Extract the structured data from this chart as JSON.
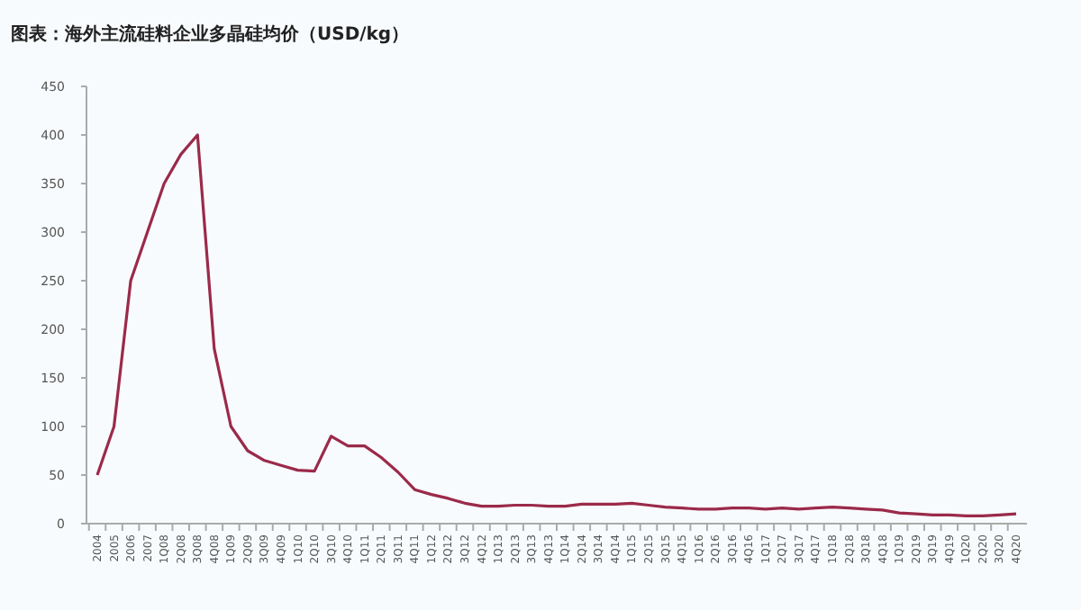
{
  "chart_data": {
    "type": "line",
    "title": "图表：海外主流硅料企业多晶硅均价（USD/kg）",
    "categories": [
      "2004",
      "2005",
      "2006",
      "2007",
      "1Q08",
      "2Q08",
      "3Q08",
      "4Q08",
      "1Q09",
      "2Q09",
      "3Q09",
      "4Q09",
      "1Q10",
      "2Q10",
      "3Q10",
      "4Q10",
      "1Q11",
      "2Q11",
      "3Q11",
      "4Q11",
      "1Q12",
      "2Q12",
      "3Q12",
      "4Q12",
      "1Q13",
      "2Q13",
      "3Q13",
      "4Q13",
      "1Q14",
      "2Q14",
      "3Q14",
      "4Q14",
      "1Q15",
      "2Q15",
      "3Q15",
      "4Q15",
      "1Q16",
      "2Q16",
      "3Q16",
      "4Q16",
      "1Q17",
      "2Q17",
      "3Q17",
      "4Q17",
      "1Q18",
      "2Q18",
      "3Q18",
      "4Q18",
      "1Q19",
      "2Q19",
      "3Q19",
      "4Q19",
      "1Q20",
      "2Q20",
      "3Q20",
      "4Q20"
    ],
    "series": [
      {
        "color": "#9b2a4a",
        "values": [
          50,
          100,
          250,
          300,
          350,
          380,
          400,
          180,
          100,
          75,
          65,
          60,
          55,
          54,
          90,
          80,
          80,
          68,
          53,
          35,
          30,
          26,
          21,
          18,
          18,
          19,
          19,
          18,
          18,
          20,
          20,
          20,
          21,
          19,
          17,
          16,
          15,
          15,
          16,
          16,
          15,
          16,
          15,
          16,
          17,
          16,
          15,
          14,
          11,
          10,
          9,
          9,
          8,
          8,
          9,
          10
        ]
      }
    ],
    "ylim": [
      0,
      450
    ],
    "yticks": [
      0,
      50,
      100,
      150,
      200,
      250,
      300,
      350,
      400,
      450
    ],
    "grid": false,
    "marker": "none",
    "line_style": "solid"
  }
}
